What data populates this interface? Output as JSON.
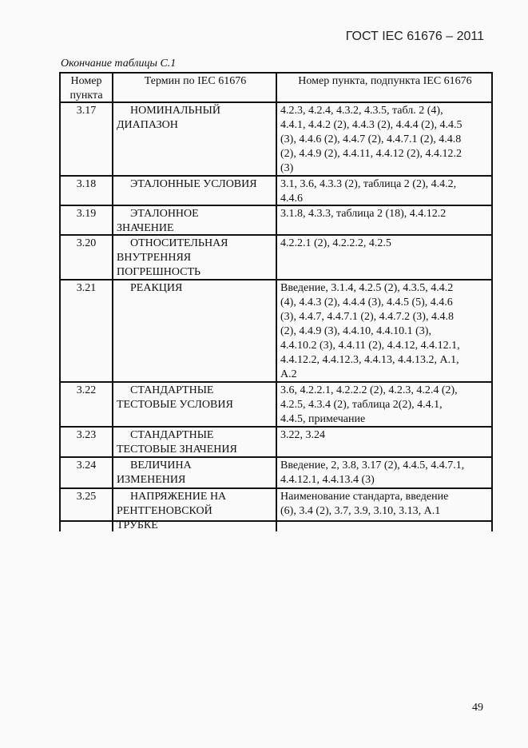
{
  "header": {
    "doc_id": "ГОСТ IEC 61676 – 2011"
  },
  "caption": "Окончание таблицы С.1",
  "table": {
    "columns": [
      "Номер\nпункта",
      "Термин по IEC 61676",
      "Номер пункта, подпункта IEC 61676"
    ],
    "rows": [
      {
        "num": "3.17",
        "term": "НОМИНАЛЬНЫЙ\nДИАПАЗОН",
        "refs": "4.2.3, 4.2.4, 4.3.2, 4.3.5, табл. 2 (4),\n4.4.1, 4.4.2 (2), 4.4.3 (2), 4.4.4 (2), 4.4.5\n(3), 4.4.6 (2), 4.4.7 (2), 4.4.7.1 (2), 4.4.8\n(2), 4.4.9 (2), 4.4.11, 4.4.12 (2), 4.4.12.2\n(3)"
      },
      {
        "num": "3.18",
        "term": "ЭТАЛОННЫЕ УСЛОВИЯ",
        "refs": "3.1, 3.6, 4.3.3 (2), таблица 2 (2), 4.4.2,\n4.4.6"
      },
      {
        "num": "3.19",
        "term": "ЭТАЛОННОЕ\nЗНАЧЕНИЕ",
        "refs": "3.1.8, 4.3.3, таблица 2 (18), 4.4.12.2"
      },
      {
        "num": "3.20",
        "term": "ОТНОСИТЕЛЬНАЯ\nВНУТРЕННЯЯ\nПОГРЕШНОСТЬ",
        "refs": "4.2.2.1 (2), 4.2.2.2, 4.2.5"
      },
      {
        "num": "3.21",
        "term": "РЕАКЦИЯ",
        "refs": "Введение, 3.1.4, 4.2.5 (2), 4.3.5, 4.4.2\n(4), 4.4.3 (2), 4.4.4 (3), 4.4.5 (5), 4.4.6\n(3), 4.4.7, 4.4.7.1 (2), 4.4.7.2 (3), 4.4.8\n(2), 4.4.9 (3), 4.4.10, 4.4.10.1 (3),\n4.4.10.2 (3), 4.4.11 (2), 4.4.12, 4.4.12.1,\n4.4.12.2, 4.4.12.3, 4.4.13, 4.4.13.2, А.1,\nА.2"
      },
      {
        "num": "3.22",
        "term": "СТАНДАРТНЫЕ\nТЕСТОВЫЕ УСЛОВИЯ",
        "refs": "3.6, 4.2.2.1, 4.2.2.2 (2), 4.2.3, 4.2.4 (2),\n4.2.5, 4.3.4 (2), таблица 2(2), 4.4.1,\n4.4.5, примечание"
      },
      {
        "num": "3.23",
        "term": "СТАНДАРТНЫЕ\nТЕСТОВЫЕ ЗНАЧЕНИЯ",
        "refs": "3.22, 3.24"
      },
      {
        "num": "3.24",
        "term": "ВЕЛИЧИНА\nИЗМЕНЕНИЯ",
        "refs": "Введение, 2, 3.8, 3.17 (2), 4.4.5, 4.4.7.1,\n4.4.12.1, 4.4.13.4 (3)"
      },
      {
        "num": "3.25",
        "term": "НАПРЯЖЕНИЕ НА\nРЕНТГЕНОВСКОЙ\nТРУБКЕ",
        "refs": "Наименование стандарта, введение\n(6), 3.4 (2), 3.7, 3.9, 3.10, 3.13, А.1"
      }
    ]
  },
  "page_number": "49"
}
